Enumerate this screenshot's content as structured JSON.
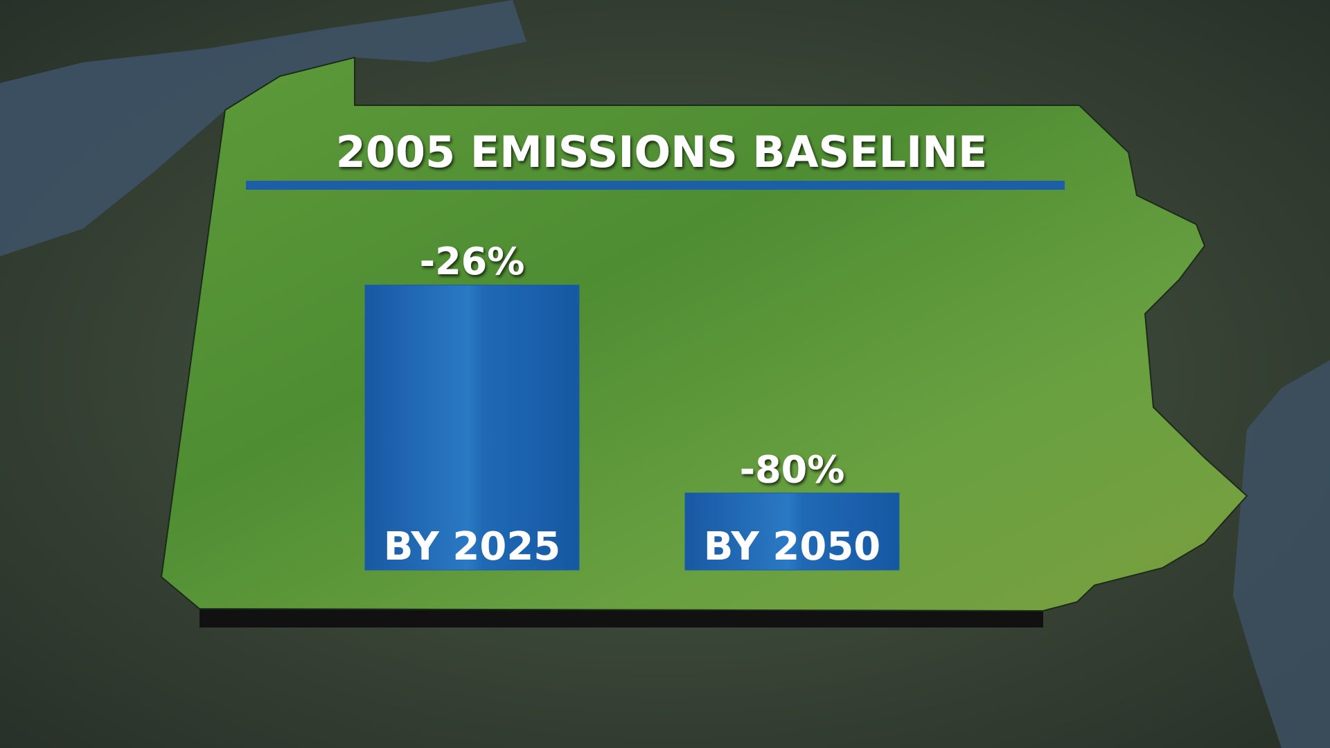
{
  "chart_data": {
    "type": "bar",
    "title": "2005 EMISSIONS BASELINE",
    "categories": [
      "BY 2025",
      "BY 2050"
    ],
    "values": [
      -26,
      -80
    ],
    "value_labels": [
      "-26%",
      "-80%"
    ],
    "color": "#1a5ea8",
    "ylim": [
      -100,
      0
    ]
  }
}
